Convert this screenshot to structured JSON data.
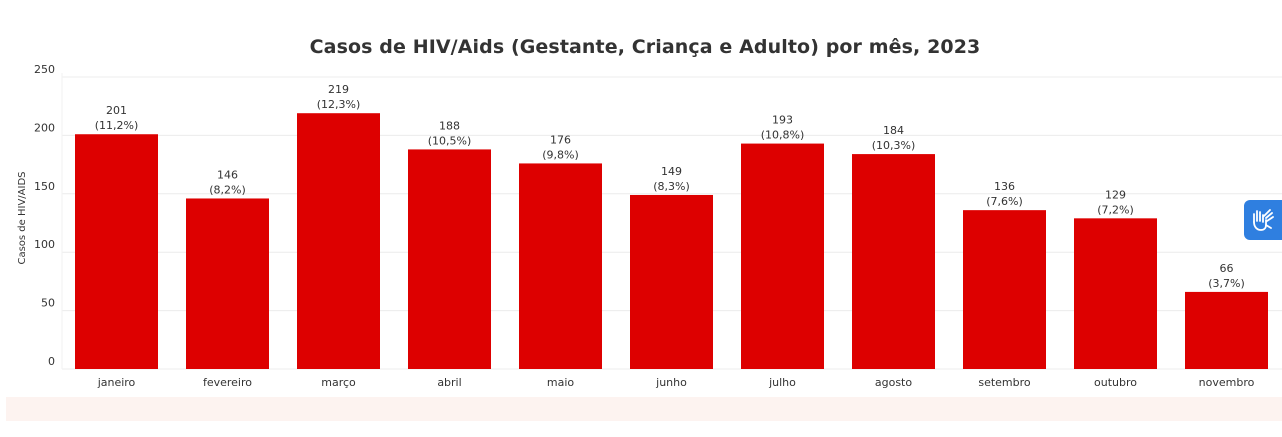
{
  "chart_data": {
    "type": "bar",
    "title": "Casos de HIV/Aids (Gestante, Criança e Adulto) por mês, 2023",
    "xlabel": "",
    "ylabel": "Casos de HIV/AIDS",
    "ylim": [
      0,
      250
    ],
    "yticks": [
      0,
      50,
      100,
      150,
      200,
      250
    ],
    "grid": true,
    "bar_color": "#dd0000",
    "categories": [
      "janeiro",
      "fevereiro",
      "março",
      "abril",
      "maio",
      "junho",
      "julho",
      "agosto",
      "setembro",
      "outubro",
      "novembro"
    ],
    "values": [
      201,
      146,
      219,
      188,
      176,
      149,
      193,
      184,
      136,
      129,
      66
    ],
    "percent_labels": [
      "(11,2%)",
      "(8,2%)",
      "(12,3%)",
      "(10,5%)",
      "(9,8%)",
      "(8,3%)",
      "(10,8%)",
      "(10,3%)",
      "(7,6%)",
      "(7,2%)",
      "(3,7%)"
    ]
  },
  "accessibility": {
    "icon": "sign-language-hands-icon",
    "color": "#2f7fe0"
  }
}
